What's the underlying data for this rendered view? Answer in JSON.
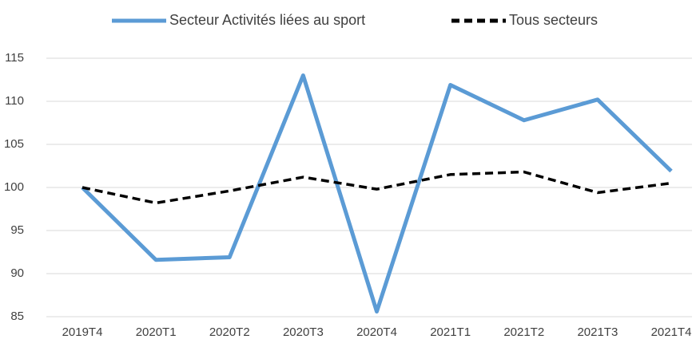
{
  "chart_data": {
    "type": "line",
    "categories": [
      "2019T4",
      "2020T1",
      "2020T2",
      "2020T3",
      "2020T4",
      "2021T1",
      "2021T2",
      "2021T3",
      "2021T4"
    ],
    "series": [
      {
        "name": "Secteur Activités liées au sport",
        "color": "#5b9bd5",
        "dash": "solid",
        "values": [
          100,
          91.6,
          91.9,
          113.0,
          85.6,
          111.9,
          107.8,
          110.2,
          101.9
        ]
      },
      {
        "name": "Tous secteurs",
        "color": "#000000",
        "dash": "dashed",
        "values": [
          100,
          98.2,
          99.6,
          101.2,
          99.8,
          101.5,
          101.8,
          99.4,
          100.5
        ]
      }
    ],
    "ylim": [
      85,
      115
    ],
    "yticks": [
      85,
      90,
      95,
      100,
      105,
      110,
      115
    ],
    "grid": true,
    "legend": "top"
  }
}
